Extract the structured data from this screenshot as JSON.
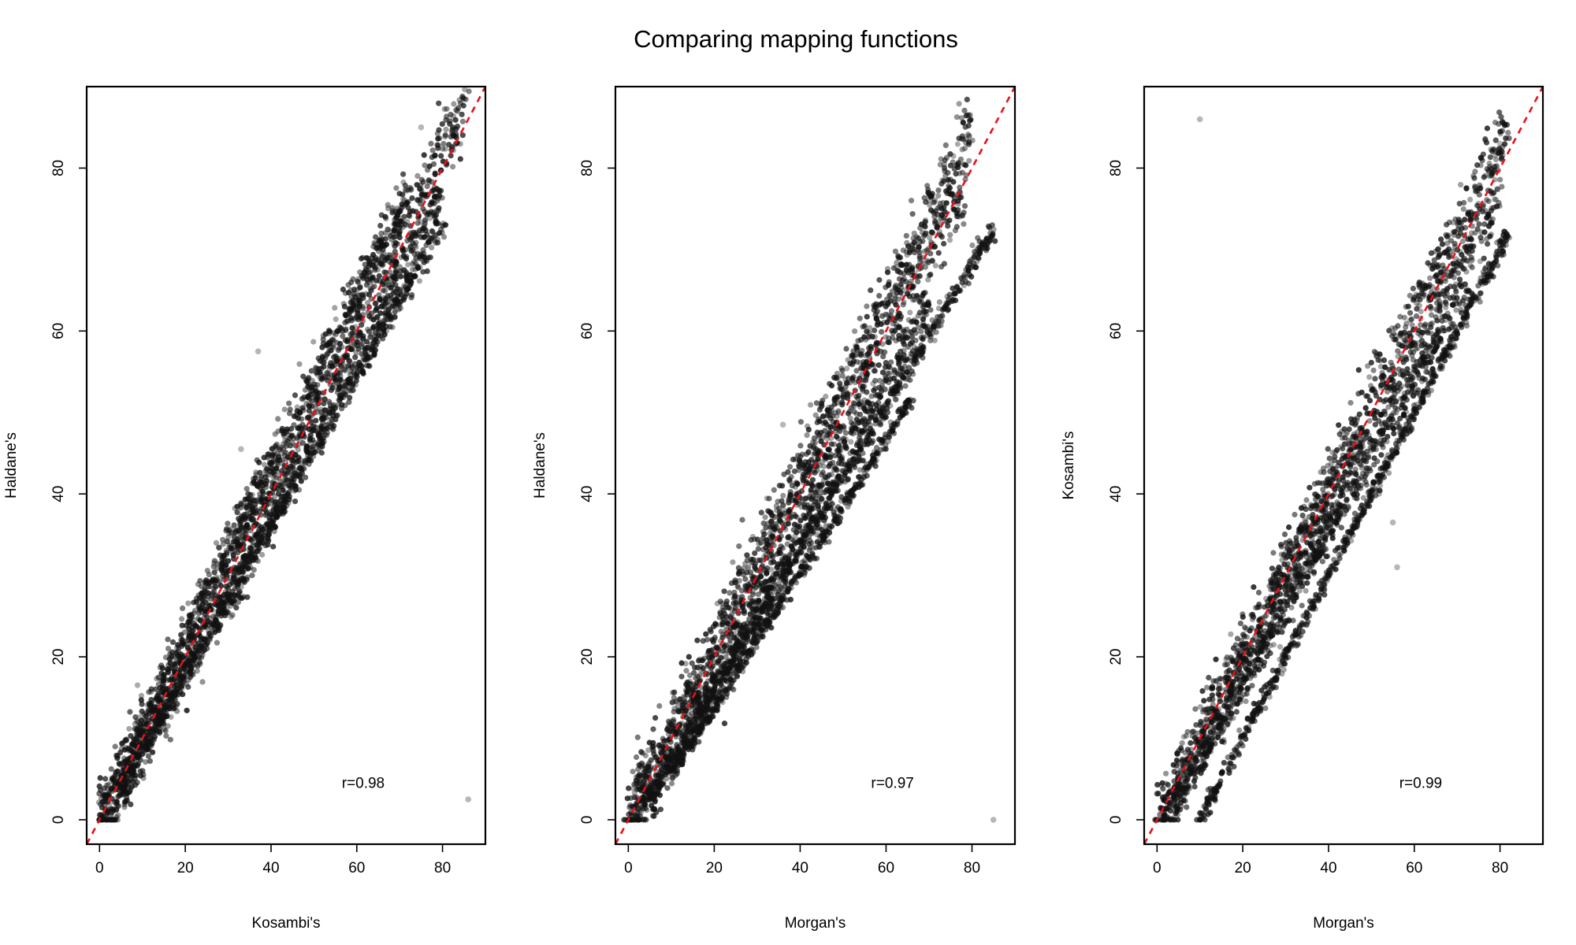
{
  "figure": {
    "title": "Comparing mapping functions"
  },
  "colors": {
    "points": "#111111",
    "reference_line": "#e8101a",
    "frame": "#000000"
  },
  "chart_data": [
    {
      "type": "scatter",
      "xlabel": "Kosambi's",
      "ylabel": "Haldane's",
      "xlim": [
        -3,
        90
      ],
      "ylim": [
        -3,
        90
      ],
      "xticks": [
        0,
        20,
        40,
        60,
        80
      ],
      "yticks": [
        0,
        20,
        40,
        60,
        80
      ],
      "annotation": "r=0.98",
      "reference_line": {
        "slope": 1,
        "intercept": 0,
        "style": "dashed"
      },
      "bands": [
        {
          "slope": 1.02,
          "intercept": 0.5,
          "x_range": [
            0,
            86
          ],
          "spread": 2.2
        },
        {
          "slope": 0.98,
          "intercept": -1.5,
          "x_range": [
            2,
            80
          ],
          "spread": 1.8
        },
        {
          "slope": 1.06,
          "intercept": 1.0,
          "x_range": [
            0,
            72
          ],
          "spread": 1.6
        },
        {
          "slope": 0.92,
          "intercept": -0.5,
          "x_range": [
            4,
            80
          ],
          "spread": 0.7
        }
      ],
      "outliers": [
        [
          86,
          2.5
        ],
        [
          37,
          57.5
        ],
        [
          33,
          45.5
        ],
        [
          75,
          85
        ]
      ]
    },
    {
      "type": "scatter",
      "xlabel": "Morgan's",
      "ylabel": "Haldane's",
      "xlim": [
        -3,
        90
      ],
      "ylim": [
        -3,
        90
      ],
      "xticks": [
        0,
        20,
        40,
        60,
        80
      ],
      "yticks": [
        0,
        20,
        40,
        60,
        80
      ],
      "annotation": "r=0.97",
      "reference_line": {
        "slope": 1,
        "intercept": 0,
        "style": "dashed"
      },
      "bands": [
        {
          "slope": 1.05,
          "intercept": 1.0,
          "x_range": [
            0,
            80
          ],
          "spread": 2.2
        },
        {
          "slope": 1.0,
          "intercept": -0.5,
          "x_range": [
            0,
            78
          ],
          "spread": 2.0
        },
        {
          "slope": 0.93,
          "intercept": -2.0,
          "x_range": [
            2,
            70
          ],
          "spread": 1.4
        },
        {
          "slope": 0.87,
          "intercept": -1.5,
          "x_range": [
            5,
            85
          ],
          "spread": 0.6
        },
        {
          "slope": 0.82,
          "intercept": -2.5,
          "x_range": [
            10,
            66
          ],
          "spread": 0.5
        }
      ],
      "outliers": [
        [
          85,
          0
        ],
        [
          36,
          48.5
        ],
        [
          64,
          59
        ]
      ]
    },
    {
      "type": "scatter",
      "xlabel": "Morgan's",
      "ylabel": "Kosambi's",
      "xlim": [
        -3,
        90
      ],
      "ylim": [
        -3,
        90
      ],
      "xticks": [
        0,
        20,
        40,
        60,
        80
      ],
      "yticks": [
        0,
        20,
        40,
        60,
        80
      ],
      "annotation": "r=0.99",
      "reference_line": {
        "slope": 1,
        "intercept": 0,
        "style": "dashed"
      },
      "bands": [
        {
          "slope": 1.03,
          "intercept": 0.5,
          "x_range": [
            0,
            82
          ],
          "spread": 2.0
        },
        {
          "slope": 0.98,
          "intercept": -1.0,
          "x_range": [
            1,
            80
          ],
          "spread": 1.8
        },
        {
          "slope": 0.93,
          "intercept": -2.0,
          "x_range": [
            3,
            72
          ],
          "spread": 1.0
        },
        {
          "slope": 1.0,
          "intercept": -10.0,
          "x_range": [
            10,
            82
          ],
          "spread": 0.5
        }
      ],
      "outliers": [
        [
          10,
          86
        ],
        [
          55,
          36.5
        ],
        [
          56,
          31
        ],
        [
          80,
          83
        ]
      ]
    }
  ]
}
